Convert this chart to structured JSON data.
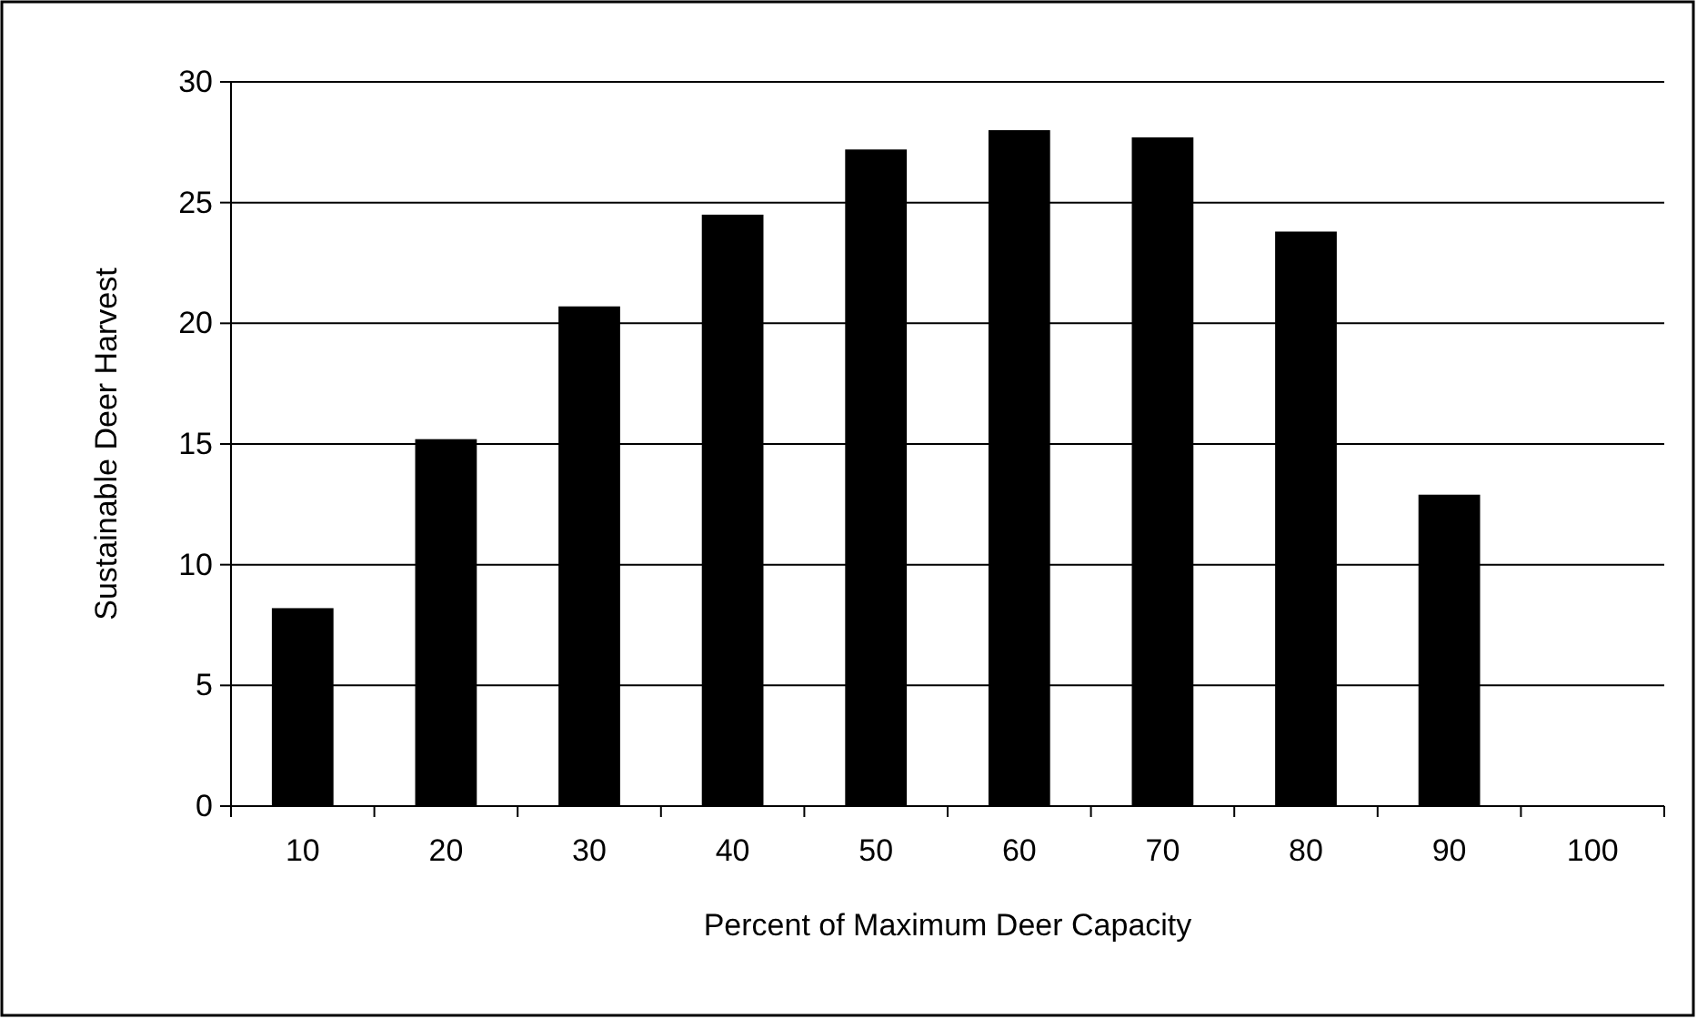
{
  "chart_data": {
    "type": "bar",
    "xlabel": "Percent of Maximum Deer Capacity",
    "ylabel": "Sustainable Deer Harvest",
    "categories": [
      "10",
      "20",
      "30",
      "40",
      "50",
      "60",
      "70",
      "80",
      "90",
      "100"
    ],
    "values": [
      8.2,
      15.2,
      20.7,
      24.5,
      27.2,
      28.0,
      27.7,
      23.8,
      12.9,
      0
    ],
    "color": "#000000",
    "ylim": [
      0,
      30
    ],
    "yticks": [
      0,
      5,
      10,
      15,
      20,
      25,
      30
    ],
    "grid": "y"
  }
}
